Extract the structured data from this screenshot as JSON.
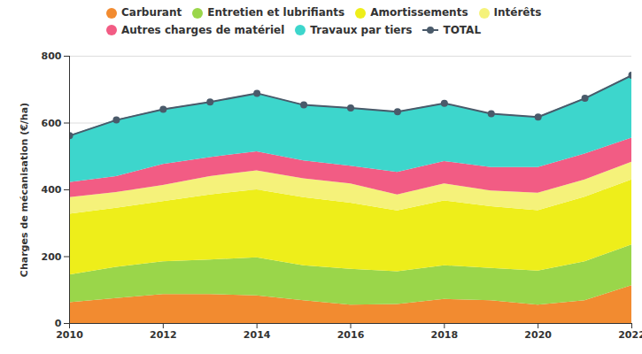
{
  "chart_data": {
    "type": "area",
    "stacked": true,
    "x": [
      2010,
      2011,
      2012,
      2013,
      2014,
      2015,
      2016,
      2017,
      2018,
      2019,
      2020,
      2021,
      2022
    ],
    "xlim": [
      2010,
      2022
    ],
    "xticks": [
      2010,
      2012,
      2014,
      2016,
      2018,
      2020,
      2022
    ],
    "ylabel": "Charges de mécanisation (€/ha)",
    "ylim": [
      0,
      800
    ],
    "yticks": [
      0,
      200,
      400,
      600,
      800
    ],
    "grid": true,
    "legend": "top",
    "series": [
      {
        "name": "Carburant",
        "color": "#f28b30",
        "values": [
          62,
          75,
          87,
          87,
          83,
          68,
          55,
          57,
          72,
          68,
          55,
          68,
          113
        ]
      },
      {
        "name": "Entretien et lubrifiants",
        "color": "#9ad64a",
        "values": [
          83,
          93,
          98,
          103,
          114,
          105,
          107,
          98,
          101,
          97,
          102,
          117,
          122
        ]
      },
      {
        "name": "Amortissements",
        "color": "#eeee1a",
        "values": [
          182,
          177,
          180,
          195,
          203,
          204,
          198,
          182,
          194,
          185,
          181,
          193,
          195
        ]
      },
      {
        "name": "Intérêts",
        "color": "#f5f27a",
        "values": [
          50,
          47,
          48,
          55,
          57,
          56,
          58,
          48,
          51,
          47,
          52,
          52,
          53
        ]
      },
      {
        "name": "Autres charges de matériel",
        "color": "#f25c84",
        "values": [
          45,
          48,
          63,
          57,
          57,
          54,
          53,
          67,
          67,
          70,
          77,
          77,
          72
        ]
      },
      {
        "name": "Travaux par tiers",
        "color": "#3dd6cc",
        "values": [
          140,
          169,
          165,
          166,
          175,
          167,
          174,
          182,
          174,
          161,
          151,
          167,
          188
        ]
      },
      {
        "name": "TOTAL",
        "color": "#4a5a6a",
        "type": "line",
        "marker": "circle",
        "values": [
          562,
          609,
          641,
          663,
          689,
          654,
          645,
          634,
          659,
          628,
          618,
          674,
          743
        ]
      }
    ]
  }
}
